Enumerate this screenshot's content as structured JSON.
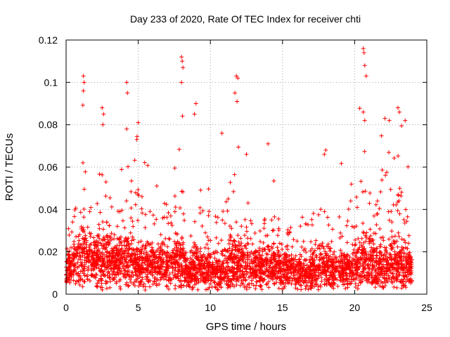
{
  "chart_data": {
    "type": "scatter",
    "title": "Day 233 of 2020, Rate Of TEC Index for receiver chti",
    "xlabel": "GPS time / hours",
    "ylabel": "ROTI / TECUs",
    "xlim": [
      0,
      25
    ],
    "ylim": [
      0,
      0.12
    ],
    "xticks": [
      "0",
      "5",
      "10",
      "15",
      "20",
      "25"
    ],
    "yticks": [
      "0",
      "0.02",
      "0.04",
      "0.06",
      "0.08",
      "0.1",
      "0.12"
    ],
    "grid": true,
    "marker": "plus",
    "series_color": "#ff0000",
    "density_profile": [
      {
        "x": 0.0,
        "base": 0.013,
        "spread": 0.008,
        "max": 0.05
      },
      {
        "x": 0.5,
        "base": 0.014,
        "spread": 0.01,
        "max": 0.06
      },
      {
        "x": 1.2,
        "base": 0.018,
        "spread": 0.016,
        "max": 0.103
      },
      {
        "x": 1.8,
        "base": 0.014,
        "spread": 0.01,
        "max": 0.06
      },
      {
        "x": 2.6,
        "base": 0.017,
        "spread": 0.014,
        "max": 0.088
      },
      {
        "x": 3.5,
        "base": 0.014,
        "spread": 0.01,
        "max": 0.06
      },
      {
        "x": 4.2,
        "base": 0.016,
        "spread": 0.013,
        "max": 0.1
      },
      {
        "x": 5.0,
        "base": 0.014,
        "spread": 0.01,
        "max": 0.081
      },
      {
        "x": 6.5,
        "base": 0.013,
        "spread": 0.009,
        "max": 0.05
      },
      {
        "x": 8.0,
        "base": 0.016,
        "spread": 0.014,
        "max": 0.112
      },
      {
        "x": 8.5,
        "base": 0.009,
        "spread": 0.006,
        "max": 0.03
      },
      {
        "x": 9.0,
        "base": 0.013,
        "spread": 0.01,
        "max": 0.09
      },
      {
        "x": 10.0,
        "base": 0.011,
        "spread": 0.008,
        "max": 0.06
      },
      {
        "x": 11.0,
        "base": 0.012,
        "spread": 0.009,
        "max": 0.076
      },
      {
        "x": 11.9,
        "base": 0.016,
        "spread": 0.013,
        "max": 0.103
      },
      {
        "x": 13.0,
        "base": 0.012,
        "spread": 0.009,
        "max": 0.05
      },
      {
        "x": 14.0,
        "base": 0.013,
        "spread": 0.011,
        "max": 0.071
      },
      {
        "x": 15.0,
        "base": 0.012,
        "spread": 0.009,
        "max": 0.05
      },
      {
        "x": 16.5,
        "base": 0.01,
        "spread": 0.008,
        "max": 0.055
      },
      {
        "x": 18.0,
        "base": 0.012,
        "spread": 0.01,
        "max": 0.068
      },
      {
        "x": 19.5,
        "base": 0.011,
        "spread": 0.009,
        "max": 0.06
      },
      {
        "x": 20.7,
        "base": 0.016,
        "spread": 0.014,
        "max": 0.116
      },
      {
        "x": 21.5,
        "base": 0.013,
        "spread": 0.011,
        "max": 0.075
      },
      {
        "x": 22.5,
        "base": 0.013,
        "spread": 0.011,
        "max": 0.083
      },
      {
        "x": 23.2,
        "base": 0.014,
        "spread": 0.012,
        "max": 0.088
      },
      {
        "x": 24.0,
        "base": 0.012,
        "spread": 0.008,
        "max": 0.05
      }
    ],
    "spike_points": [
      {
        "x": 1.2,
        "y": 0.103
      },
      {
        "x": 1.25,
        "y": 0.1
      },
      {
        "x": 1.2,
        "y": 0.096
      },
      {
        "x": 2.5,
        "y": 0.088
      },
      {
        "x": 2.6,
        "y": 0.085
      },
      {
        "x": 2.55,
        "y": 0.08
      },
      {
        "x": 4.2,
        "y": 0.1
      },
      {
        "x": 4.25,
        "y": 0.095
      },
      {
        "x": 4.2,
        "y": 0.078
      },
      {
        "x": 5.0,
        "y": 0.081
      },
      {
        "x": 4.9,
        "y": 0.073
      },
      {
        "x": 8.0,
        "y": 0.112
      },
      {
        "x": 8.05,
        "y": 0.11
      },
      {
        "x": 8.1,
        "y": 0.107
      },
      {
        "x": 8.0,
        "y": 0.1
      },
      {
        "x": 9.0,
        "y": 0.09
      },
      {
        "x": 8.9,
        "y": 0.085
      },
      {
        "x": 11.8,
        "y": 0.103
      },
      {
        "x": 11.9,
        "y": 0.102
      },
      {
        "x": 11.7,
        "y": 0.095
      },
      {
        "x": 11.85,
        "y": 0.091
      },
      {
        "x": 10.8,
        "y": 0.076
      },
      {
        "x": 14.0,
        "y": 0.071
      },
      {
        "x": 18.0,
        "y": 0.068
      },
      {
        "x": 17.9,
        "y": 0.066
      },
      {
        "x": 20.6,
        "y": 0.116
      },
      {
        "x": 20.65,
        "y": 0.114
      },
      {
        "x": 20.7,
        "y": 0.108
      },
      {
        "x": 20.8,
        "y": 0.103
      },
      {
        "x": 20.6,
        "y": 0.086
      },
      {
        "x": 20.7,
        "y": 0.082
      },
      {
        "x": 22.1,
        "y": 0.083
      },
      {
        "x": 22.4,
        "y": 0.082
      },
      {
        "x": 23.0,
        "y": 0.088
      },
      {
        "x": 23.1,
        "y": 0.086
      },
      {
        "x": 23.5,
        "y": 0.082
      }
    ]
  }
}
